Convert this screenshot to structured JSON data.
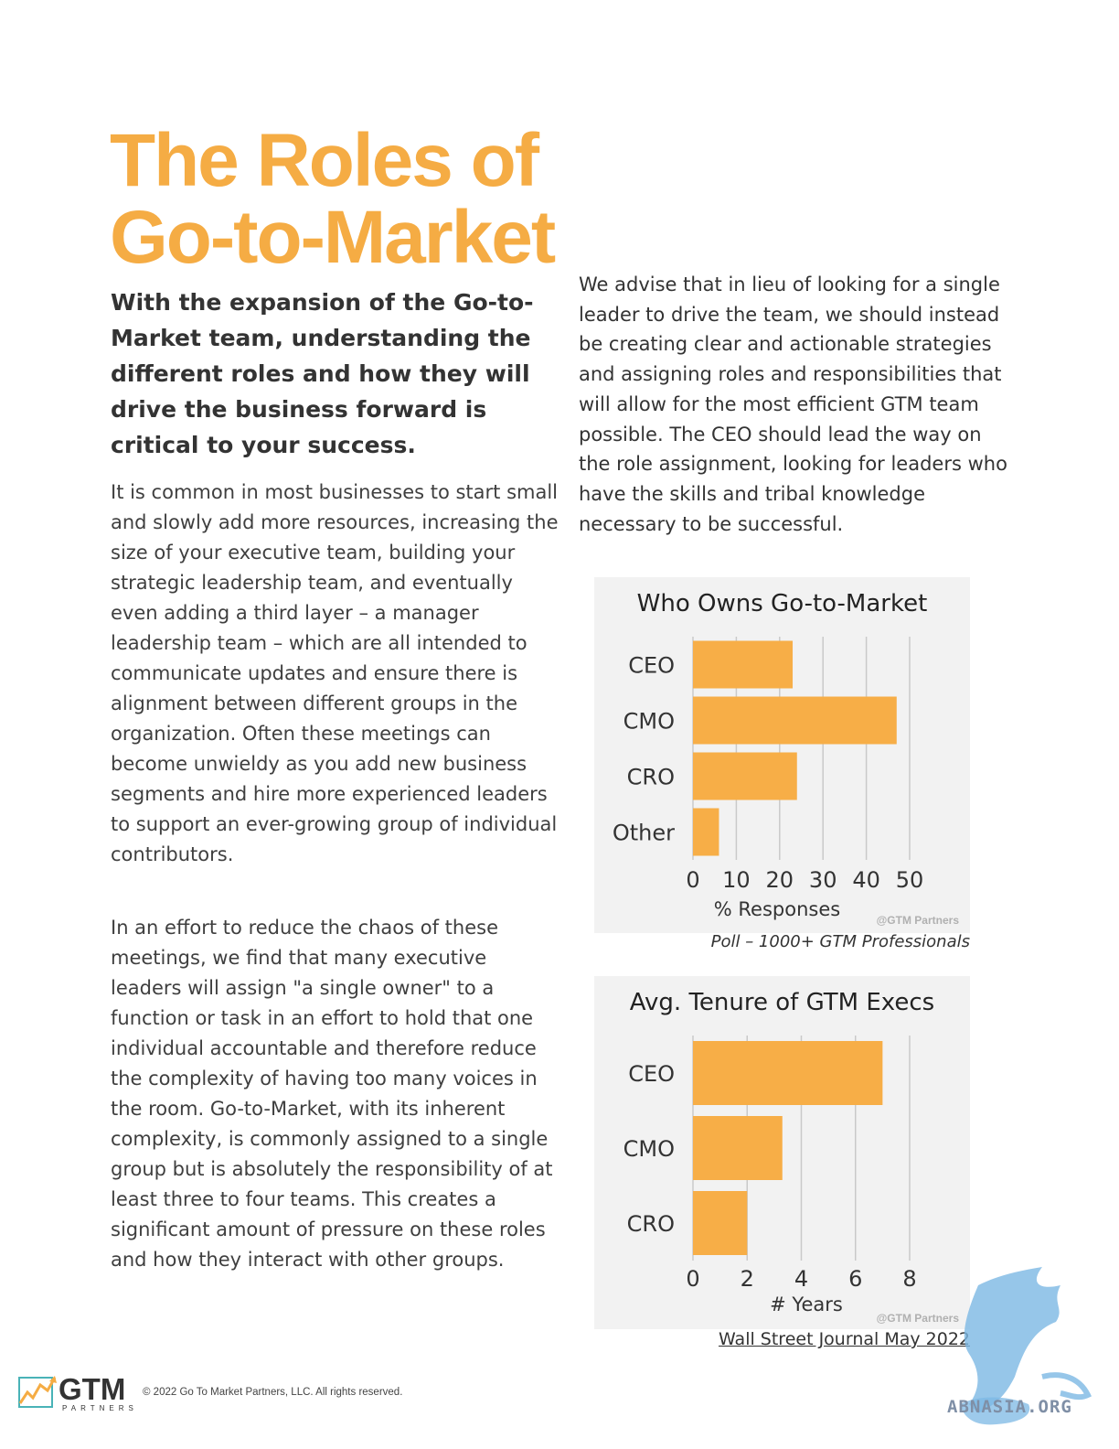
{
  "title": {
    "line1": "The Roles of",
    "line2": "Go-to-Market"
  },
  "lead": "With the expansion of the Go-to-Market team, understanding the different roles and how they will drive the business forward is critical to your success.",
  "paragraphs": [
    "It is common in most businesses to start small and slowly add more resources, increasing the size of your executive team, building your strategic leadership team, and eventually even adding a third layer – a manager leadership team – which are all intended to communicate updates and ensure there is alignment between different groups in the organization. Often these meetings can become unwieldy as you add new business segments and hire more experienced leaders to support an ever-growing group of individual contributors.",
    "In an effort to reduce the chaos of these meetings, we find that many executive leaders will assign \"a single owner\" to a function or task in an effort to hold that one individual accountable and therefore reduce the complexity of having too many voices in the room. Go-to-Market, with its inherent complexity, is commonly assigned to a single group but is absolutely the responsibility of at least three to four teams. This creates a significant amount of pressure on these roles and how they interact with other groups.",
    "We advise that in lieu of looking for a single leader to drive the team, we should instead be creating clear and actionable strategies and assigning roles and responsibilities that will allow for the most efficient GTM team possible. The CEO should lead the way on the role assignment, looking for leaders who have the skills and tribal knowledge necessary to be successful."
  ],
  "chart_data": [
    {
      "type": "bar",
      "orientation": "horizontal",
      "title": "Who Owns Go-to-Market",
      "categories": [
        "CEO",
        "CMO",
        "CRO",
        "Other"
      ],
      "values": [
        23,
        47,
        24,
        6
      ],
      "xlabel": "% Responses",
      "xticks": [
        "0",
        "10",
        "20",
        "30",
        "40",
        "50"
      ],
      "xlim": [
        0,
        50
      ],
      "watermark": "@GTM Partners",
      "caption": "Poll – 1000+ GTM Professionals",
      "bar_color": "#f7ae47",
      "grid": true
    },
    {
      "type": "bar",
      "orientation": "horizontal",
      "title": "Avg. Tenure of GTM Execs",
      "categories": [
        "CEO",
        "CMO",
        "CRO"
      ],
      "values": [
        7.0,
        3.3,
        2.0
      ],
      "xlabel": "# Years",
      "xticks": [
        "0",
        "2",
        "4",
        "6",
        "8"
      ],
      "xlim": [
        0,
        8
      ],
      "watermark": "@GTM Partners",
      "caption": "Wall Street Journal May 2022",
      "bar_color": "#f7ae47",
      "grid": true
    }
  ],
  "footer": {
    "logo_text": "GTM",
    "logo_sub": "PARTNERS",
    "copyright": "© 2022 Go To Market Partners, LLC. All rights reserved."
  },
  "stamp": {
    "text": "ABNASIA.ORG"
  },
  "colors": {
    "accent": "#f5ac44",
    "bar": "#f7ae47",
    "chart_bg": "#f2f2f2"
  }
}
